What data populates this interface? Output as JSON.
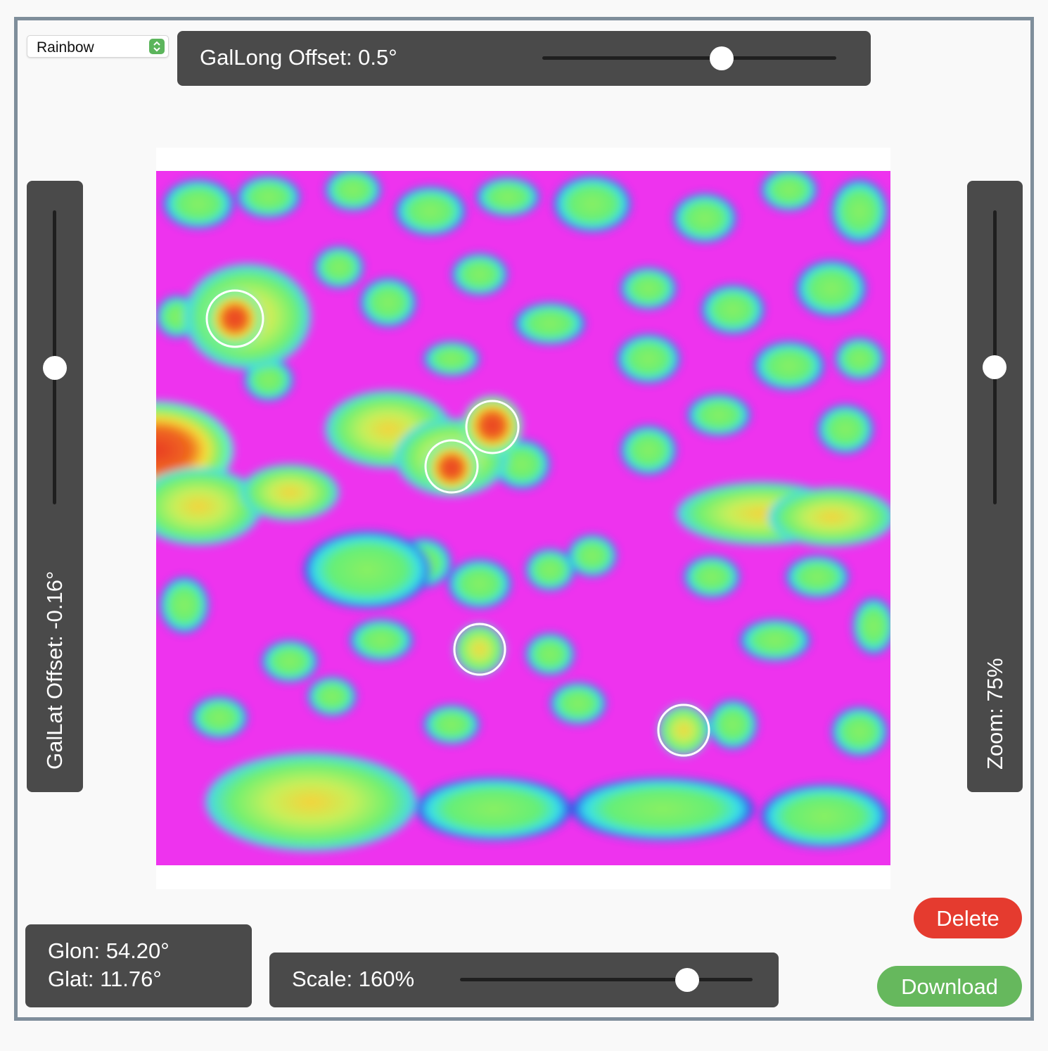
{
  "colormap": {
    "selected": "Rainbow"
  },
  "gallong": {
    "label": "GalLong Offset: 0.5°",
    "value_deg": 0.5
  },
  "gallat": {
    "label": "GalLat Offset: -0.16°",
    "value_deg": -0.16
  },
  "zoom": {
    "label": "Zoom: 75%",
    "value_pct": 75
  },
  "scale": {
    "label": "Scale: 160%",
    "value_pct": 160
  },
  "coords": {
    "glon": "Glon: 54.20°",
    "glat": "Glat: 11.76°"
  },
  "buttons": {
    "delete": "Delete",
    "download": "Download"
  },
  "colors": {
    "delete": "#e53b2f",
    "download": "#66b85d",
    "panel": "#4a4a4a",
    "frame": "#7f8e9b",
    "map_background": "#ee33ee"
  },
  "icons": {
    "select_arrows": "chevron-up-down-icon",
    "markers": "circle-marker-icon"
  }
}
